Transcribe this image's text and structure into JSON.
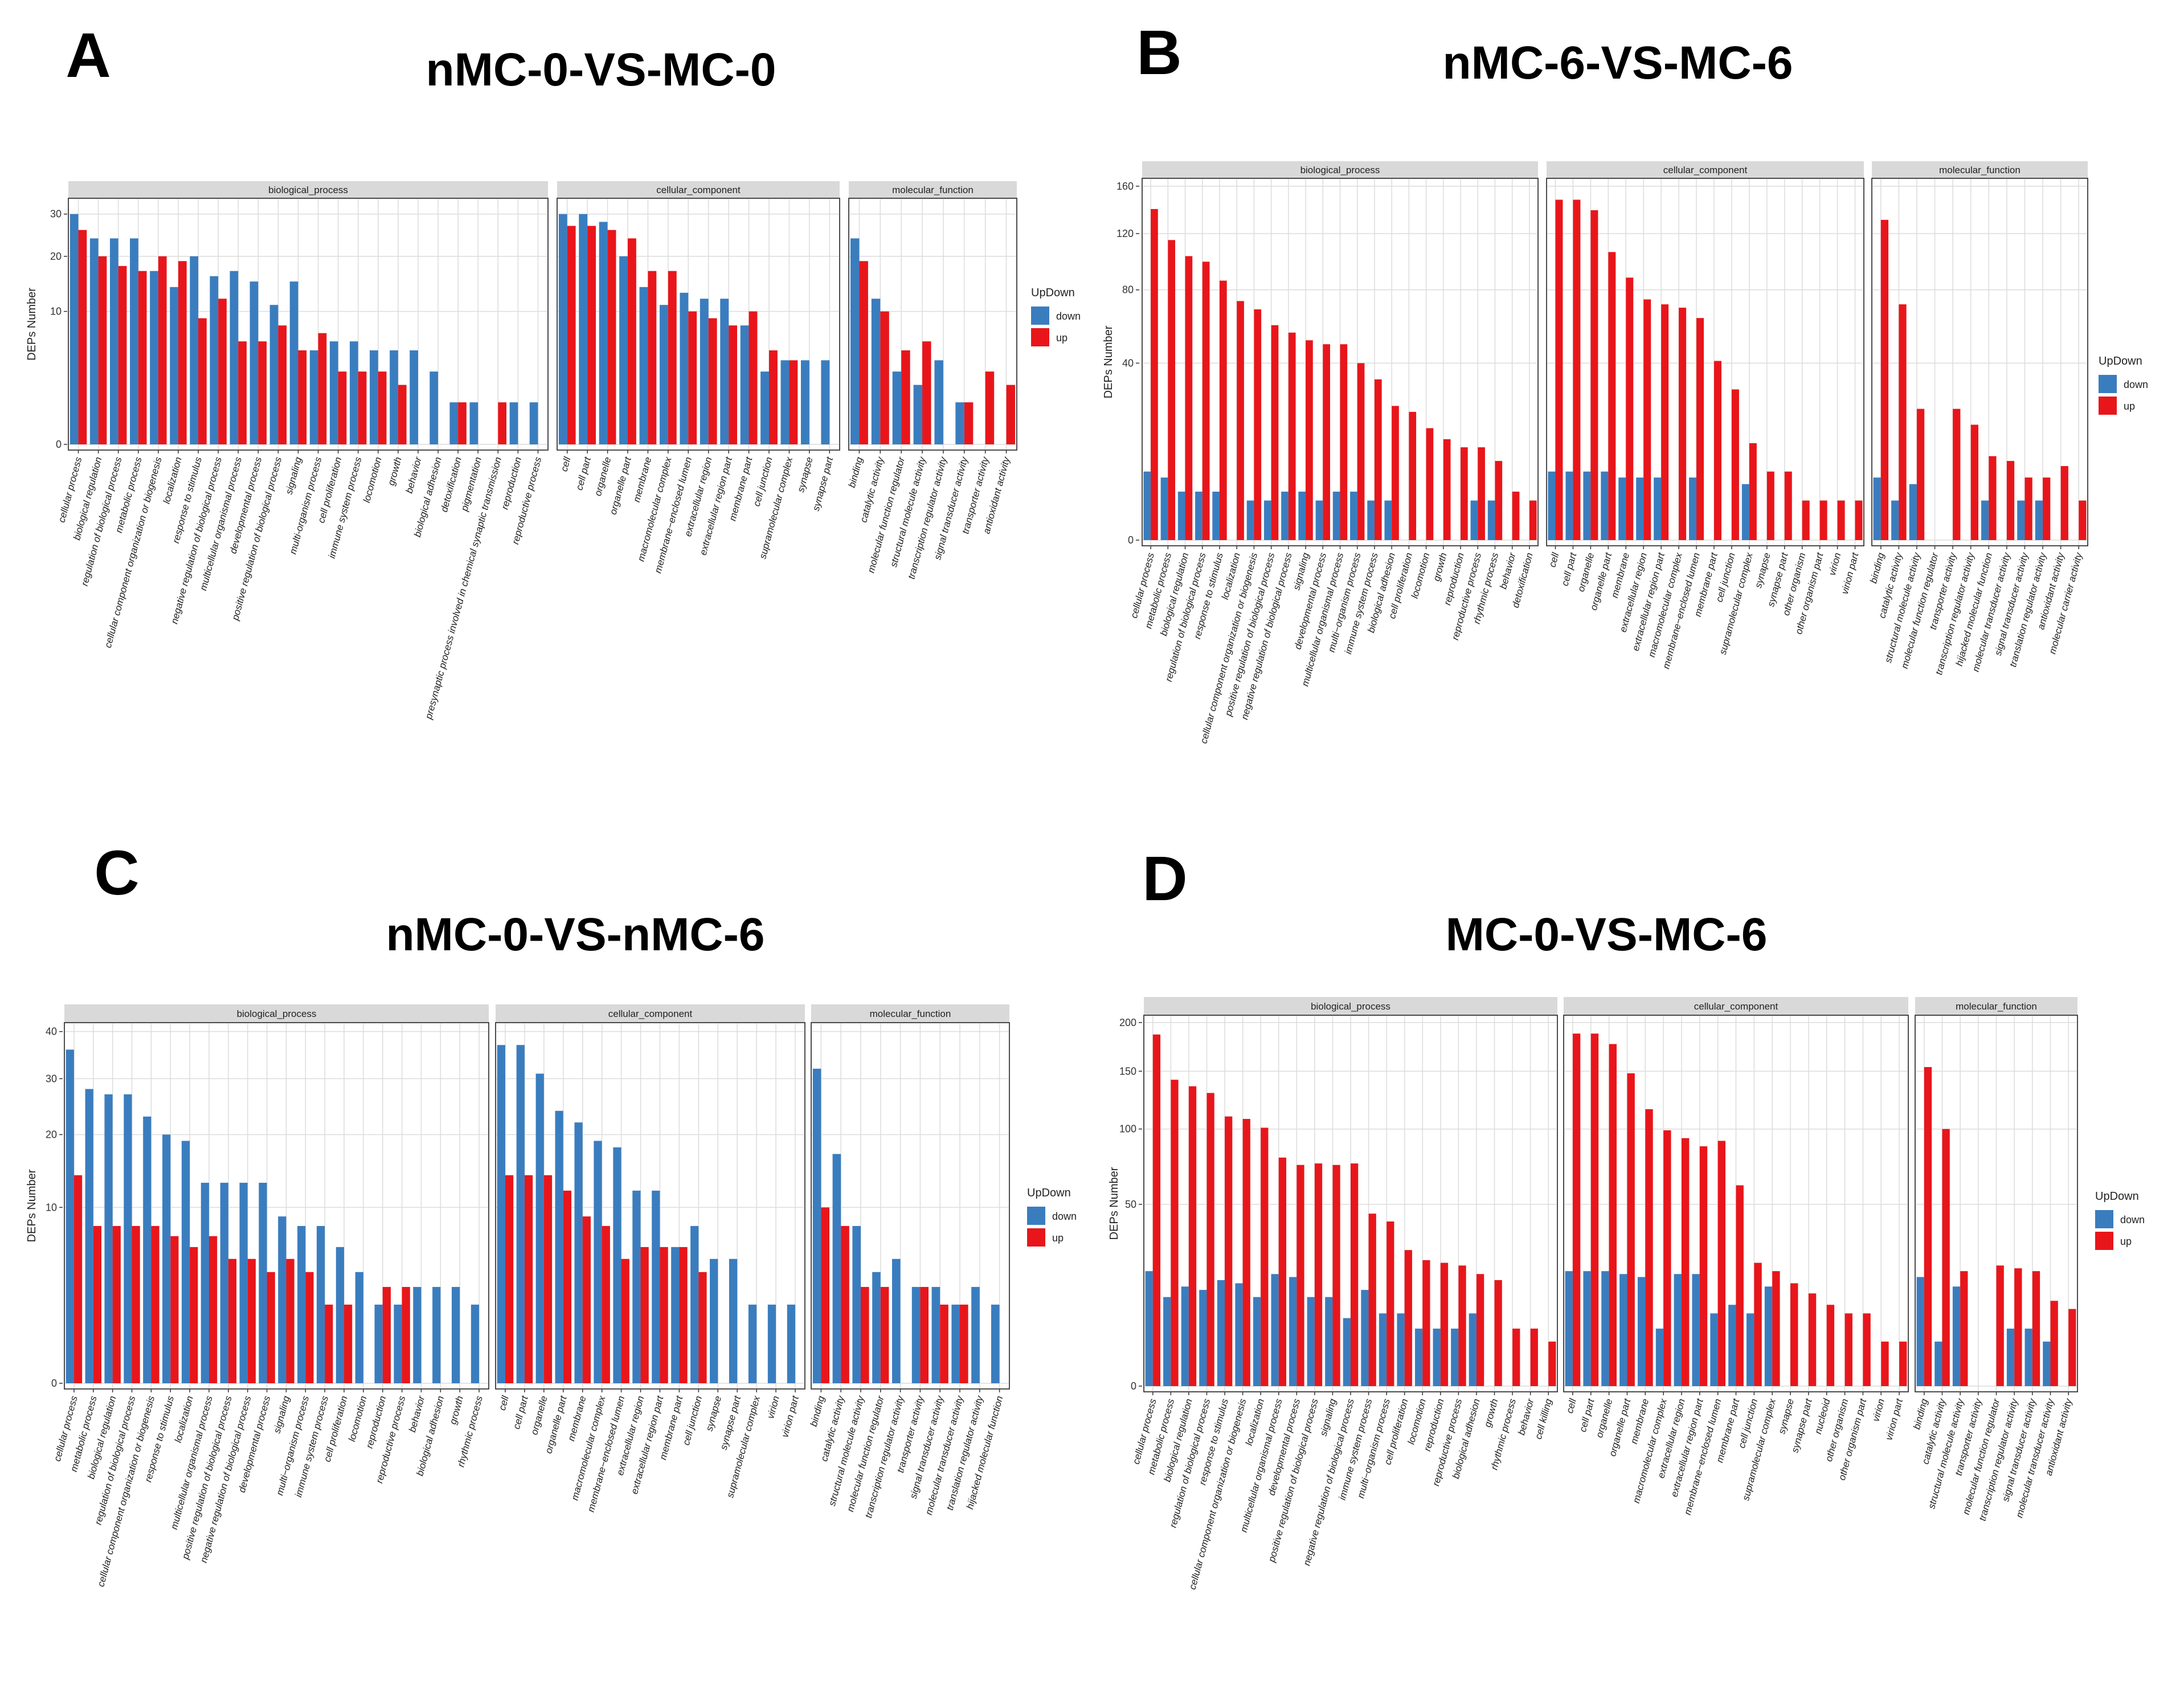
{
  "colors": {
    "down": "#3a7dbf",
    "up": "#e8161b",
    "strip": "#d9d9d9",
    "grid": "#dcdcdc"
  },
  "chart_data": [
    {
      "type": "bar",
      "panel_letter": "A",
      "title": "nMC-0-VS-MC-0",
      "ylabel": "DEPs Number",
      "legend": {
        "title": "UpDown",
        "entries": [
          "down",
          "up"
        ],
        "placement": "right"
      },
      "yaxis": {
        "scale": "sqrt",
        "ticks": [
          0,
          10,
          20,
          30
        ],
        "tick_labels": [
          "0",
          "10",
          "20",
          "30"
        ],
        "max": 33
      },
      "facets": [
        {
          "name": "biological_process",
          "categories": [
            "cellular process",
            "biological regulation",
            "regulation of biological process",
            "metabolic process",
            "cellular component organization or biogenesis",
            "localization",
            "response to stimulus",
            "negative regulation of biological process",
            "multicellular organismal process",
            "developmental process",
            "positive regulation of biological process",
            "signaling",
            "multi-organism process",
            "cell proliferation",
            "immune system process",
            "locomotion",
            "growth",
            "behavior",
            "biological adhesion",
            "detoxification",
            "pigmentation",
            "presynaptic process involved in chemical synaptic transmission",
            "reproduction",
            "reproductive process"
          ],
          "down": [
            30,
            24,
            24,
            24,
            17,
            14,
            20,
            16,
            17,
            15,
            11,
            15,
            5,
            6,
            6,
            5,
            5,
            5,
            3,
            1,
            1,
            0,
            1,
            1
          ],
          "up": [
            26,
            20,
            18,
            17,
            20,
            19,
            9,
            12,
            6,
            6,
            8,
            5,
            7,
            3,
            3,
            3,
            2,
            0,
            0,
            1,
            0,
            1,
            0,
            0
          ]
        },
        {
          "name": "cellular_component",
          "categories": [
            "cell",
            "cell part",
            "organelle",
            "organelle part",
            "membrane",
            "macromolecular complex",
            "membrane−enclosed lumen",
            "extracellular region",
            "extracellular region part",
            "membrane part",
            "cell junction",
            "supramolecular complex",
            "synapse",
            "synapse part"
          ],
          "down": [
            30,
            30,
            28,
            20,
            14,
            11,
            13,
            12,
            12,
            8,
            3,
            4,
            4,
            4
          ],
          "up": [
            27,
            27,
            26,
            24,
            17,
            17,
            10,
            9,
            8,
            10,
            5,
            4,
            0,
            0
          ]
        },
        {
          "name": "molecular_function",
          "categories": [
            "binding",
            "catalytic activity",
            "molecular function regulator",
            "structural molecule activity",
            "transcription regulator activity",
            "signal transducer activity",
            "transporter activity",
            "antioxidant activity"
          ],
          "down": [
            24,
            12,
            3,
            2,
            4,
            1,
            0,
            0
          ],
          "up": [
            19,
            10,
            5,
            6,
            0,
            1,
            3,
            2
          ]
        }
      ]
    },
    {
      "type": "bar",
      "panel_letter": "B",
      "title": "nMC-6-VS-MC-6",
      "ylabel": "DEPs Number",
      "legend": {
        "title": "UpDown",
        "entries": [
          "down",
          "up"
        ],
        "placement": "right"
      },
      "yaxis": {
        "scale": "sqrt",
        "ticks": [
          0,
          40,
          80,
          120,
          160
        ],
        "tick_labels": [
          "0",
          "40",
          "80",
          "120",
          "160"
        ],
        "max": 163
      },
      "facets": [
        {
          "name": "biological_process",
          "categories": [
            "cellular process",
            "metabolic process",
            "biological regulation",
            "regulation of biological process",
            "response to stimulus",
            "localization",
            "cellular component organization or biogenesis",
            "positive regulation of biological process",
            "negative regulation of biological process",
            "signaling",
            "developmental process",
            "multicellular organismal process",
            "multi−organism process",
            "immune system process",
            "biological adhesion",
            "cell proliferation",
            "locomotion",
            "growth",
            "reproduction",
            "reproductive process",
            "rhythmic process",
            "behavior",
            "detoxification"
          ],
          "down": [
            6,
            5,
            3,
            3,
            3,
            0,
            2,
            2,
            3,
            3,
            2,
            3,
            3,
            2,
            2,
            0,
            0,
            0,
            0,
            2,
            2,
            0,
            0
          ],
          "up": [
            140,
            115,
            103,
            99,
            86,
            73,
            68,
            59,
            55,
            51,
            49,
            49,
            40,
            33,
            23,
            21,
            16,
            13,
            11,
            11,
            8,
            3,
            2
          ]
        },
        {
          "name": "cellular_component",
          "categories": [
            "cell",
            "cell part",
            "organelle",
            "organelle part",
            "membrane",
            "extracellular region",
            "extracellular region part",
            "macromolecular complex",
            "membrane−enclosed lumen",
            "membrane part",
            "cell junction",
            "supramolecular complex",
            "synapse",
            "synapse part",
            "other organism",
            "other organism part",
            "virion",
            "virion part"
          ],
          "down": [
            6,
            6,
            6,
            6,
            5,
            5,
            5,
            0,
            5,
            0,
            0,
            4,
            0,
            0,
            0,
            0,
            0,
            0
          ],
          "up": [
            148,
            148,
            139,
            106,
            88,
            74,
            71,
            69,
            63,
            41,
            29,
            12,
            6,
            6,
            2,
            2,
            2,
            2
          ]
        },
        {
          "name": "molecular_function",
          "categories": [
            "binding",
            "catalytic activity",
            "structural molecule activity",
            "molecular function regulator",
            "transporter activity",
            "transcription regulator activity",
            "hijacked molecular function",
            "molecular transducer activity",
            "signal transducer activity",
            "translation regulator activity",
            "antioxidant activity",
            "molecular carrier activity"
          ],
          "down": [
            5,
            2,
            4,
            0,
            0,
            0,
            2,
            0,
            2,
            2,
            0,
            0
          ],
          "up": [
            131,
            71,
            22,
            0,
            22,
            17,
            9,
            8,
            5,
            5,
            7,
            2
          ]
        }
      ]
    },
    {
      "type": "bar",
      "panel_letter": "C",
      "title": "nMC-0-VS-nMC-6",
      "ylabel": "DEPs Number",
      "legend": {
        "title": "UpDown",
        "entries": [
          "down",
          "up"
        ],
        "placement": "right"
      },
      "yaxis": {
        "scale": "sqrt",
        "ticks": [
          0,
          10,
          20,
          30,
          40
        ],
        "tick_labels": [
          "0",
          "10",
          "20",
          "30",
          "40"
        ],
        "max": 41
      },
      "facets": [
        {
          "name": "biological_process",
          "categories": [
            "cellular process",
            "metabolic process",
            "biological regulation",
            "regulation of biological process",
            "cellular component organization or biogenesis",
            "response to stimulus",
            "localization",
            "multicellular organismal process",
            "positive regulation of biological process",
            "negative regulation of biological process",
            "developmental process",
            "signaling",
            "multi−organism process",
            "immune system process",
            "cell proliferation",
            "locomotion",
            "reproduction",
            "reproductive process",
            "behavior",
            "biological adhesion",
            "growth",
            "rhythmic process"
          ],
          "down": [
            36,
            28,
            27,
            27,
            23,
            20,
            19,
            13,
            13,
            13,
            13,
            9,
            8,
            8,
            6,
            4,
            2,
            2,
            3,
            3,
            3,
            2
          ],
          "up": [
            14,
            8,
            8,
            8,
            8,
            7,
            6,
            7,
            5,
            5,
            4,
            5,
            4,
            2,
            2,
            0,
            3,
            3,
            0,
            0,
            0,
            0
          ]
        },
        {
          "name": "cellular_component",
          "categories": [
            "cell",
            "cell part",
            "organelle",
            "organelle part",
            "membrane",
            "macromolecular complex",
            "membrane−enclosed lumen",
            "extracellular region",
            "extracellular region part",
            "membrane part",
            "cell junction",
            "synapse",
            "synapse part",
            "supramolecular complex",
            "virion",
            "virion part"
          ],
          "down": [
            37,
            37,
            31,
            24,
            22,
            19,
            18,
            12,
            12,
            6,
            8,
            5,
            5,
            2,
            2,
            2
          ],
          "up": [
            14,
            14,
            14,
            12,
            9,
            8,
            5,
            6,
            6,
            6,
            4,
            0,
            0,
            0,
            0,
            0
          ]
        },
        {
          "name": "molecular_function",
          "categories": [
            "binding",
            "catalytic activity",
            "structural molecule activity",
            "molecular function regulator",
            "transcription regulator activity",
            "transporter activity",
            "signal transducer activity",
            "molecular transducer activity",
            "translation regulator activity",
            "hijacked molecular function"
          ],
          "down": [
            32,
            17,
            8,
            4,
            5,
            3,
            3,
            2,
            3,
            2
          ],
          "up": [
            10,
            8,
            3,
            3,
            0,
            3,
            2,
            2,
            0,
            0
          ]
        }
      ]
    },
    {
      "type": "bar",
      "panel_letter": "D",
      "title": "MC-0-VS-MC-6",
      "ylabel": "DEPs Number",
      "legend": {
        "title": "UpDown",
        "entries": [
          "down",
          "up"
        ],
        "placement": "right"
      },
      "yaxis": {
        "scale": "sqrt",
        "ticks": [
          0,
          50,
          100,
          150,
          200
        ],
        "tick_labels": [
          "0",
          "50",
          "100",
          "150",
          "200"
        ],
        "max": 203
      },
      "facets": [
        {
          "name": "biological_process",
          "categories": [
            "cellular process",
            "metabolic process",
            "biological regulation",
            "regulation of biological process",
            "response to stimulus",
            "cellular component organization or biogenesis",
            "localization",
            "multicellular organismal process",
            "developmental process",
            "positive regulation of biological process",
            "signaling",
            "negative regulation of biological process",
            "immune system process",
            "multi−organism process",
            "cell proliferation",
            "locomotion",
            "reproduction",
            "reproductive process",
            "biological adhesion",
            "growth",
            "rhythmic process",
            "behavior",
            "cell killing"
          ],
          "down": [
            20,
            12,
            15,
            14,
            17,
            16,
            12,
            19,
            18,
            12,
            12,
            7,
            14,
            8,
            8,
            5,
            5,
            5,
            8,
            0,
            0,
            0,
            0
          ],
          "up": [
            187,
            142,
            136,
            130,
            110,
            108,
            101,
            79,
            74,
            75,
            74,
            75,
            45,
            41,
            28,
            24,
            23,
            22,
            19,
            17,
            5,
            5,
            3
          ]
        },
        {
          "name": "cellular_component",
          "categories": [
            "cell",
            "cell part",
            "organelle",
            "organelle part",
            "membrane",
            "macromolecular complex",
            "extracellular region",
            "extracellular region part",
            "membrane−enclosed lumen",
            "membrane part",
            "cell junction",
            "supramolecular complex",
            "synapse",
            "synapse part",
            "nucleoid",
            "other organism",
            "other organism part",
            "virion",
            "virion part"
          ],
          "down": [
            20,
            20,
            20,
            19,
            18,
            5,
            19,
            19,
            8,
            10,
            8,
            15,
            0,
            0,
            0,
            0,
            0,
            0,
            0
          ],
          "up": [
            188,
            188,
            177,
            148,
            116,
            99,
            93,
            87,
            91,
            61,
            23,
            20,
            16,
            13,
            10,
            8,
            8,
            3,
            3
          ]
        },
        {
          "name": "molecular_function",
          "categories": [
            "binding",
            "catalytic activity",
            "structural molecule activity",
            "transporter activity",
            "molecular function regulator",
            "transcription regulator activity",
            "signal transducer activity",
            "molecular transducer activity",
            "antioxidant activity"
          ],
          "down": [
            18,
            3,
            15,
            0,
            0,
            5,
            5,
            3,
            0
          ],
          "up": [
            154,
            100,
            20,
            0,
            22,
            21,
            20,
            11,
            9
          ]
        }
      ]
    }
  ]
}
